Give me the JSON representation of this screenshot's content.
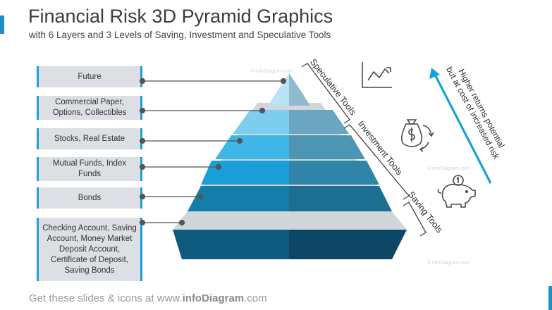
{
  "header": {
    "title": "Financial Risk 3D Pyramid Graphics",
    "subtitle": "with 6 Layers and 3 Levels of Saving, Investment and Speculative Tools"
  },
  "labels": [
    "Future",
    "Commercial Paper, Options, Collectibles",
    "Stocks, Real Estate",
    "Mutual Funds, Index Funds",
    "Bonds",
    "Checking Account, Saving Account, Money Market Deposit Account, Certificate of Deposit, Saving Bonds"
  ],
  "brackets": {
    "speculative": "Speculative Tools",
    "investment": "Investment Tools",
    "saving": "Saving Tools"
  },
  "arrow_text": {
    "line1": "Higher returns potential",
    "line2": "but at cost of increased risk"
  },
  "watermark": "© infoDiagram.com",
  "footer": {
    "prefix": "Get these slides & icons at www.",
    "brand": "infoDiagram",
    "suffix": ".com"
  },
  "colors": {
    "accent": "#1aa0d8",
    "layer_front": [
      "#b9e4f7",
      "#7dcdef",
      "#3fb6e8",
      "#1a9fdb",
      "#157ea8",
      "#0e5b7f"
    ],
    "layer_side": [
      "#8fb9cc",
      "#6aa6bf",
      "#4c95b3",
      "#2f84a8",
      "#1d6f92",
      "#0c4865"
    ],
    "slab": "#d1d6db"
  },
  "icons": [
    "line-chart-icon",
    "money-bag-cycle-icon",
    "piggy-bank-icon",
    "arrow-up-icon"
  ]
}
